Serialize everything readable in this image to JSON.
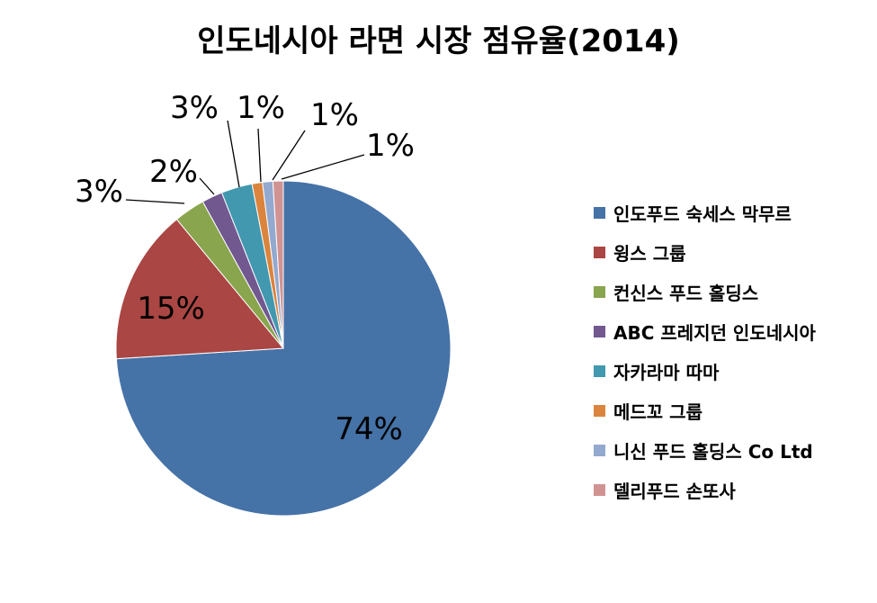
{
  "chart_data": {
    "type": "pie",
    "title": "인도네시아 라면 시장 점유율(2014)",
    "categories": [
      "인도푸드 숙세스 막무르",
      "윙스 그룹",
      "컨신스 푸드 홀딩스",
      "ABC 프레지던 인도네시아",
      "자카라마 따마",
      "메드꼬 그룹",
      "니신 푸드 홀딩스 Co Ltd",
      "델리푸드 손또사"
    ],
    "values": [
      74,
      15,
      3,
      2,
      3,
      1,
      1,
      1
    ],
    "data_labels": [
      "74%",
      "15%",
      "3%",
      "2%",
      "3%",
      "1%",
      "1%",
      "1%"
    ],
    "colors": [
      "#4572a7",
      "#aa4643",
      "#89a54e",
      "#71588f",
      "#4198af",
      "#db843d",
      "#93a9cf",
      "#d19392"
    ],
    "legend_position": "right",
    "start_angle_deg": 0,
    "direction": "clockwise"
  }
}
